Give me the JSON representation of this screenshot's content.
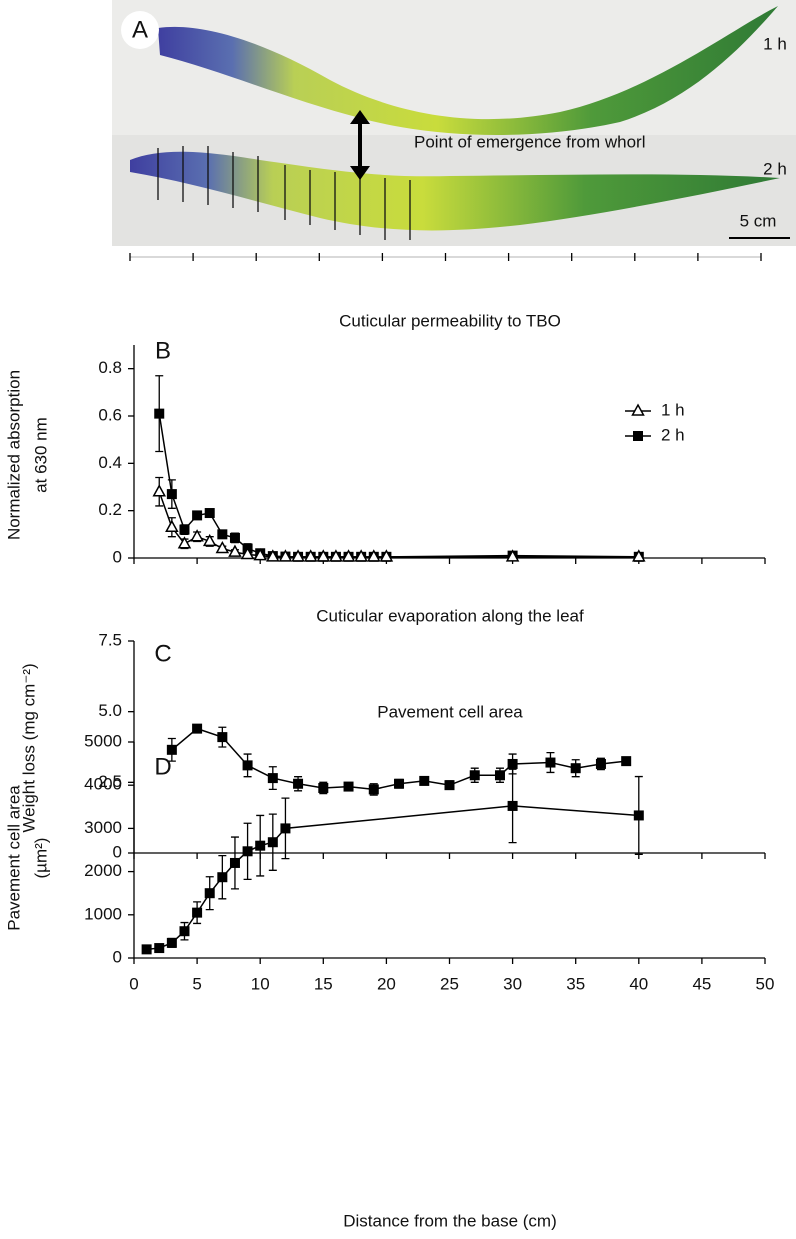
{
  "panel_a": {
    "label": "A",
    "top_label": "1 h",
    "bottom_label": "2 h",
    "annotation": "Point of emergence from whorl",
    "scale_bar": "5 cm"
  },
  "chart_data": [
    {
      "type": "line",
      "panel_label": "B",
      "title": "Cuticular permeability to TBO",
      "y_label": [
        "Normalized absorption",
        "at 630 nm"
      ],
      "xlim": [
        0,
        50
      ],
      "ylim": [
        0,
        0.9
      ],
      "yticks": [
        0,
        0.2,
        0.4,
        0.6,
        0.8
      ],
      "legend": "upper right",
      "series": [
        {
          "name": "1 h",
          "color": "#000000",
          "marker": "triangle",
          "x": [
            2,
            3,
            4,
            5,
            6,
            7,
            8,
            9,
            10,
            11,
            12,
            13,
            14,
            15,
            16,
            17,
            18,
            19,
            20,
            30,
            40
          ],
          "values": [
            0.28,
            0.13,
            0.06,
            0.09,
            0.07,
            0.04,
            0.025,
            0.015,
            0.01,
            0.005,
            0.005,
            0.005,
            0.005,
            0.005,
            0.005,
            0.005,
            0.005,
            0.005,
            0.005,
            0.005,
            0.005
          ],
          "errors": [
            0.06,
            0.04,
            0.02,
            0.02,
            0.02,
            0.01,
            0.01,
            0.005,
            0.005,
            0.002,
            0.002,
            0.002,
            0.002,
            0.002,
            0.002,
            0.002,
            0.002,
            0.002,
            0.002,
            0.002,
            0.002
          ]
        },
        {
          "name": "2 h",
          "color": "#000000",
          "marker": "square",
          "x": [
            2,
            3,
            4,
            5,
            6,
            7,
            8,
            9,
            10,
            11,
            12,
            13,
            14,
            15,
            16,
            17,
            18,
            19,
            20,
            30,
            40
          ],
          "values": [
            0.61,
            0.27,
            0.12,
            0.18,
            0.19,
            0.1,
            0.085,
            0.04,
            0.02,
            0.008,
            0.006,
            0.005,
            0.005,
            0.005,
            0.005,
            0.005,
            0.005,
            0.005,
            0.005,
            0.01,
            0.005
          ],
          "errors": [
            0.16,
            0.06,
            0.02,
            0.01,
            0.01,
            0.01,
            0.02,
            0.02,
            0.01,
            0.003,
            0.002,
            0.002,
            0.002,
            0.002,
            0.002,
            0.002,
            0.002,
            0.002,
            0.002,
            0.005,
            0.003
          ]
        }
      ]
    },
    {
      "type": "line",
      "panel_label": "C",
      "title": "Cuticular evaporation along the leaf",
      "y_label": [
        "Weight loss (mg cm⁻²)"
      ],
      "xlim": [
        0,
        50
      ],
      "ylim": [
        0,
        7.5
      ],
      "yticks": [
        0,
        2.5,
        {
          "value": 5,
          "label": "5.0"
        },
        7.5
      ],
      "series": [
        {
          "name": null,
          "color": "#000000",
          "marker": "square",
          "x": [
            3,
            5,
            7,
            9,
            11,
            13,
            15,
            17,
            19,
            21,
            23,
            25,
            27,
            29,
            30,
            33,
            35,
            37,
            39
          ],
          "values": [
            3.65,
            4.4,
            4.1,
            3.1,
            2.65,
            2.45,
            2.3,
            2.35,
            2.25,
            2.45,
            2.55,
            2.4,
            2.75,
            2.75,
            3.15,
            3.2,
            3.0,
            3.15,
            3.25
          ],
          "errors": [
            0.4,
            0.1,
            0.35,
            0.4,
            0.4,
            0.25,
            0.2,
            0.1,
            0.2,
            0.15,
            0.1,
            0.15,
            0.25,
            0.25,
            0.35,
            0.35,
            0.3,
            0.2,
            0.1
          ]
        }
      ]
    },
    {
      "type": "line",
      "panel_label": "D",
      "title": "Pavement cell area",
      "y_label": [
        "Pavement cell area",
        "(µm²)"
      ],
      "x_label": "Distance from the base (cm)",
      "xlim": [
        0,
        50
      ],
      "xticks": [
        0,
        5,
        10,
        15,
        20,
        25,
        30,
        35,
        40,
        45,
        50
      ],
      "ylim": [
        0,
        5000
      ],
      "yticks": [
        0,
        1000,
        2000,
        3000,
        4000,
        5000
      ],
      "series": [
        {
          "name": null,
          "color": "#000000",
          "marker": "square",
          "x": [
            1,
            2,
            3,
            4,
            5,
            6,
            7,
            8,
            9,
            10,
            11,
            12,
            30,
            40
          ],
          "values": [
            200,
            230,
            350,
            620,
            1050,
            1500,
            1870,
            2200,
            2470,
            2600,
            2680,
            3000,
            3520,
            3300
          ],
          "errors": [
            50,
            60,
            100,
            200,
            250,
            380,
            500,
            600,
            650,
            700,
            650,
            700,
            850,
            900
          ]
        }
      ]
    }
  ]
}
